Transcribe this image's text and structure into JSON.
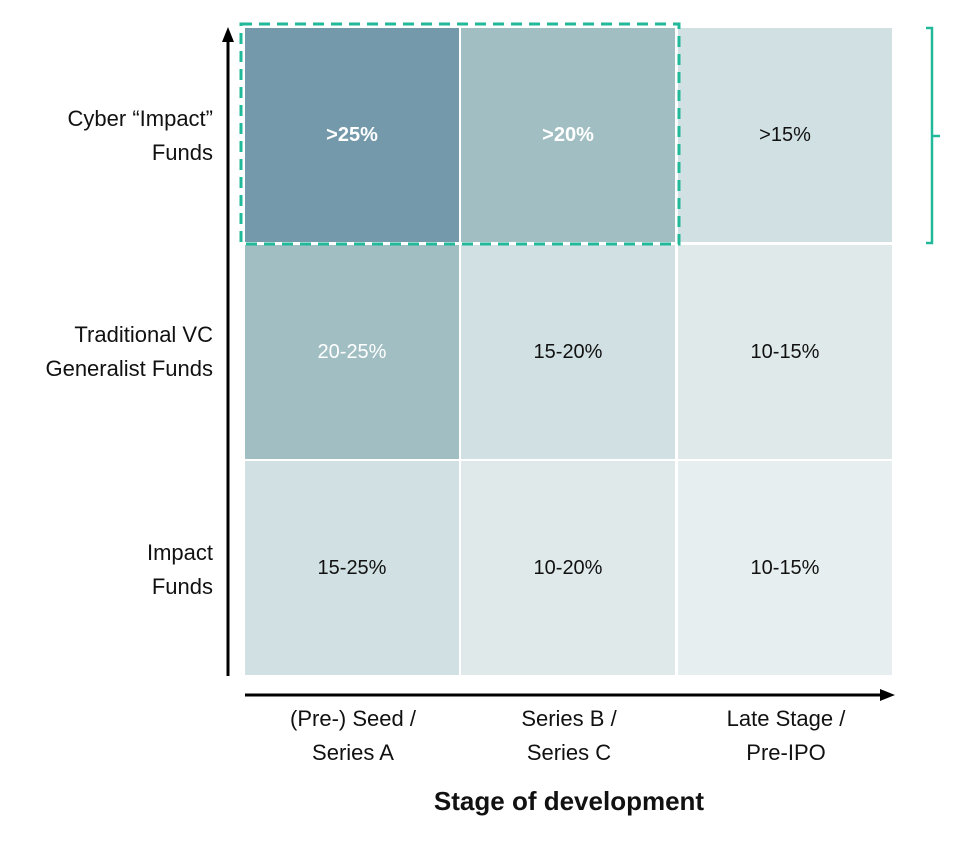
{
  "rows": [
    {
      "label_line1": "Cyber “Impact”",
      "label_line2": "Funds"
    },
    {
      "label_line1": "Traditional VC",
      "label_line2": "Generalist Funds"
    },
    {
      "label_line1": "Impact",
      "label_line2": "Funds"
    }
  ],
  "columns": [
    {
      "label_line1": "(Pre-) Seed /",
      "label_line2": "Series A"
    },
    {
      "label_line1": "Series B /",
      "label_line2": "Series C"
    },
    {
      "label_line1": "Late Stage /",
      "label_line2": "Pre-IPO"
    }
  ],
  "cells": [
    [
      {
        "text": ">25%",
        "bold": true,
        "fill": "#7399aa",
        "text_color": "#ffffff"
      },
      {
        "text": ">20%",
        "bold": true,
        "fill": "#a1bec3",
        "text_color": "#ffffff"
      },
      {
        "text": ">15%",
        "bold": false,
        "fill": "#d1e0e2",
        "text_color": "#111111"
      }
    ],
    [
      {
        "text": "20-25%",
        "bold": false,
        "fill": "#a1bec3",
        "text_color": "#ffffff"
      },
      {
        "text": "15-20%",
        "bold": false,
        "fill": "#d1e0e2",
        "text_color": "#111111"
      },
      {
        "text": "10-15%",
        "bold": false,
        "fill": "#dfe9ea",
        "text_color": "#111111"
      }
    ],
    [
      {
        "text": "15-25%",
        "bold": false,
        "fill": "#d1e0e2",
        "text_color": "#111111"
      },
      {
        "text": "10-20%",
        "bold": false,
        "fill": "#dfe9ea",
        "text_color": "#111111"
      },
      {
        "text": "10-15%",
        "bold": false,
        "fill": "#e7eeef",
        "text_color": "#111111"
      }
    ]
  ],
  "x_axis_title": "Stage of development",
  "colors": {
    "highlight": "#22b99a",
    "axis": "#000000"
  }
}
